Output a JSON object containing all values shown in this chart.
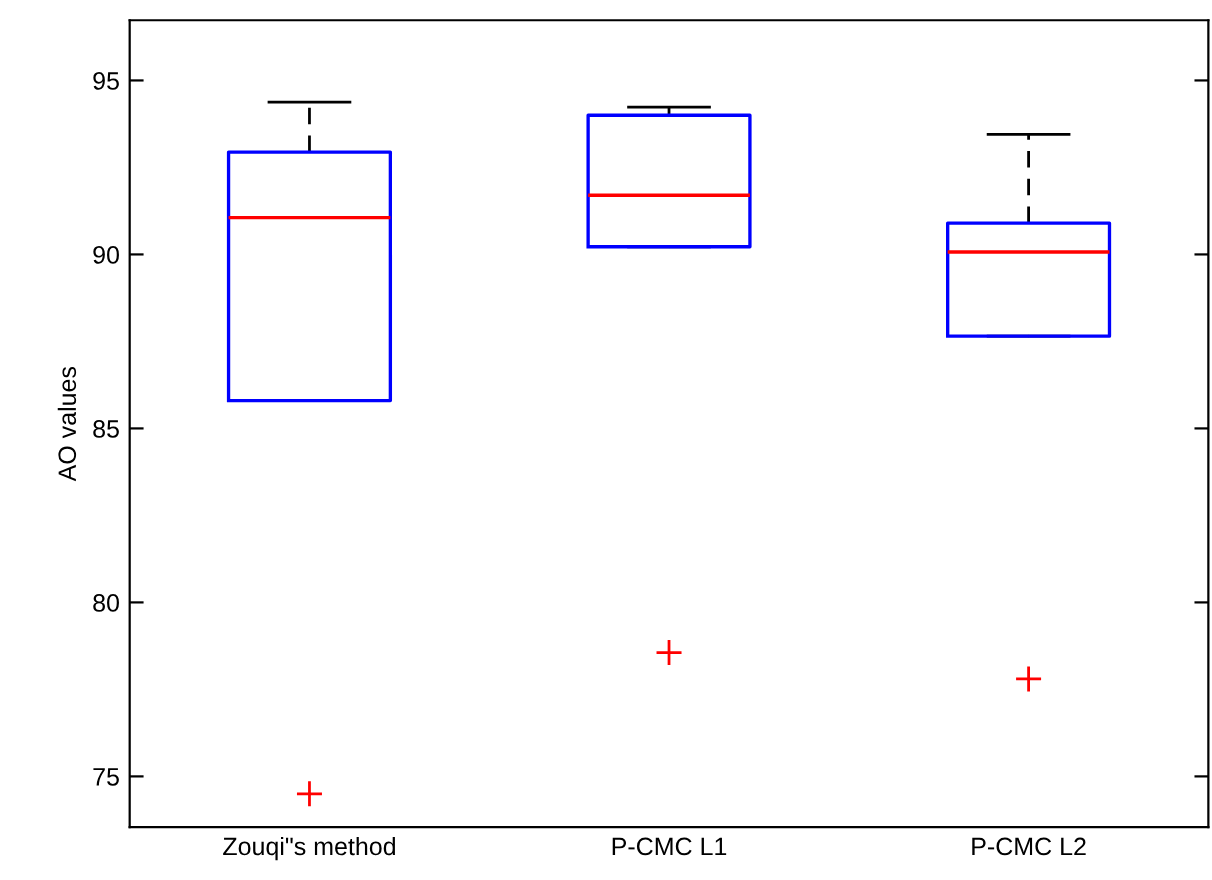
{
  "chart_data": {
    "type": "box",
    "ylabel": "AO values",
    "categories": [
      "Zouqi\"s method",
      "P-CMC L1",
      "P-CMC L2"
    ],
    "boxes": [
      {
        "low": 85.8,
        "q1": 85.8,
        "median": 91.06,
        "q3": 92.94,
        "high": 94.38,
        "outliers": [
          74.5
        ]
      },
      {
        "low": 90.22,
        "q1": 90.22,
        "median": 91.7,
        "q3": 94.0,
        "high": 94.23,
        "outliers": [
          78.56
        ]
      },
      {
        "low": 87.65,
        "q1": 87.65,
        "median": 90.07,
        "q3": 90.9,
        "high": 93.45,
        "outliers": [
          77.8
        ]
      }
    ],
    "color": "#0000ff",
    "ylim": [
      73.54,
      96.73
    ],
    "yticks": [
      75,
      80,
      85,
      90,
      95
    ],
    "grid": false,
    "line_style": "dashed",
    "marker": "cross"
  }
}
